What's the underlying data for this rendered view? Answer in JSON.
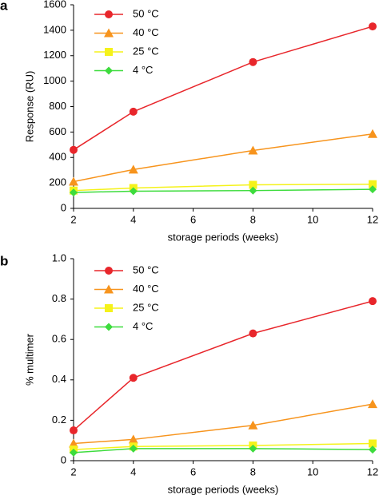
{
  "chart_data": [
    {
      "type": "line",
      "panel_label": "a",
      "y_label": "Response (RU)",
      "x_label": "storage periods (weeks)",
      "x": [
        2,
        4,
        8,
        12
      ],
      "xlim": [
        2,
        12
      ],
      "xticks": [
        2,
        4,
        6,
        8,
        10,
        12
      ],
      "ylim": [
        0,
        1600
      ],
      "yticks": [
        0,
        200,
        400,
        600,
        800,
        1000,
        1200,
        1400,
        1600
      ],
      "legend": "upper-left",
      "series": [
        {
          "name": "50 °C",
          "color": "#e8262b",
          "marker": "circle",
          "values": [
            460,
            760,
            1150,
            1430
          ]
        },
        {
          "name": "40 °C",
          "color": "#f7941d",
          "marker": "triangle",
          "values": [
            210,
            305,
            455,
            585
          ]
        },
        {
          "name": "25 °C",
          "color": "#f5f21a",
          "marker": "square",
          "values": [
            140,
            160,
            185,
            190
          ]
        },
        {
          "name": "4 °C",
          "color": "#3ddc3d",
          "marker": "diamond",
          "values": [
            125,
            135,
            140,
            150
          ]
        }
      ]
    },
    {
      "type": "line",
      "panel_label": "b",
      "y_label": "% multimer",
      "x_label": "storage periods (weeks)",
      "x": [
        2,
        4,
        8,
        12
      ],
      "xlim": [
        2,
        12
      ],
      "xticks": [
        2,
        4,
        6,
        8,
        10,
        12
      ],
      "ylim": [
        0,
        1
      ],
      "yticks": [
        0,
        0.2,
        0.4,
        0.6,
        0.8,
        {
          "value": 1,
          "label": "1.0"
        }
      ],
      "legend": "upper-left",
      "series": [
        {
          "name": "50 °C",
          "color": "#e8262b",
          "marker": "circle",
          "values": [
            0.15,
            0.41,
            0.63,
            0.79
          ]
        },
        {
          "name": "40 °C",
          "color": "#f7941d",
          "marker": "triangle",
          "values": [
            0.085,
            0.105,
            0.175,
            0.28
          ]
        },
        {
          "name": "25 °C",
          "color": "#f5f21a",
          "marker": "square",
          "values": [
            0.055,
            0.07,
            0.075,
            0.085
          ]
        },
        {
          "name": "4 °C",
          "color": "#3ddc3d",
          "marker": "diamond",
          "values": [
            0.04,
            0.06,
            0.06,
            0.055
          ]
        }
      ]
    }
  ]
}
